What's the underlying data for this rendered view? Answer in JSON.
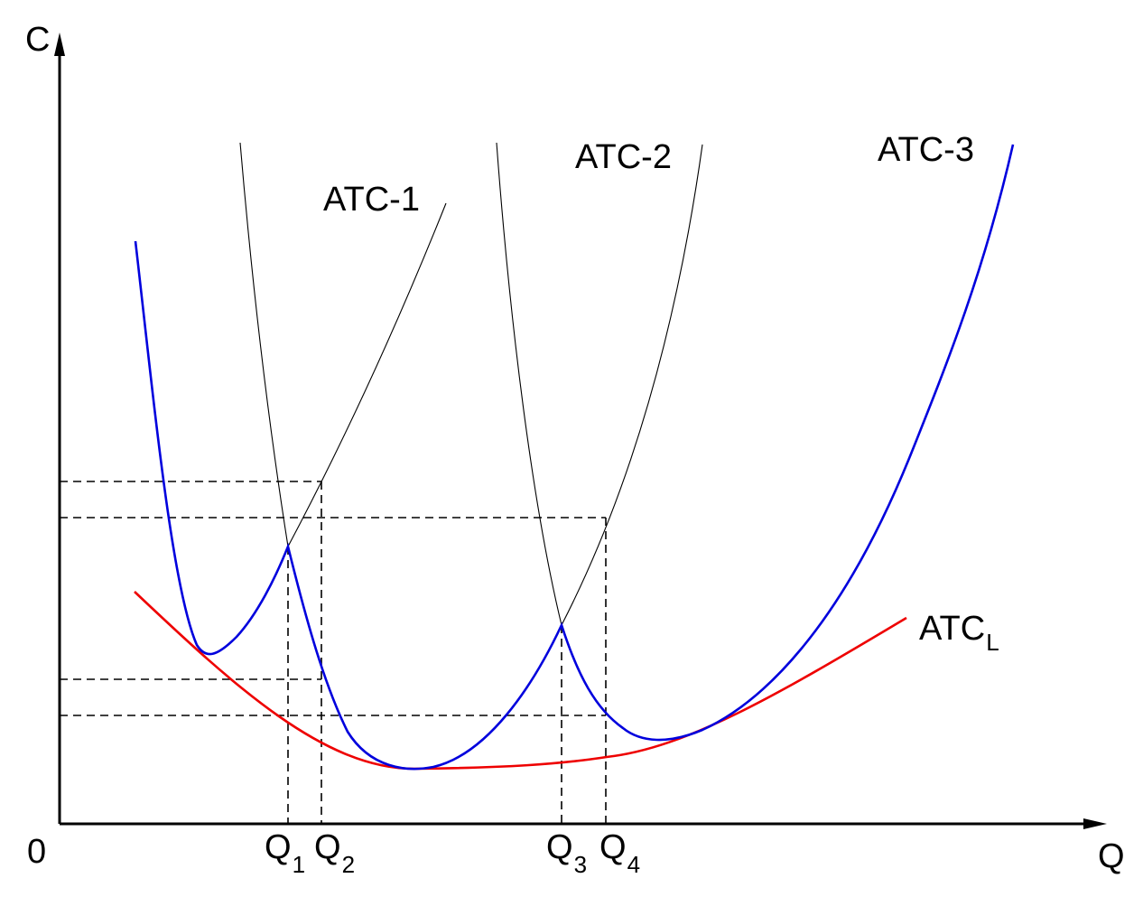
{
  "axes": {
    "y_label": "C",
    "x_label": "Q",
    "origin_label": "0"
  },
  "curves": {
    "atc1": {
      "label": "ATC-1"
    },
    "atc2": {
      "label": "ATC-2"
    },
    "atc3": {
      "label": "ATC-3"
    },
    "atcl": {
      "label_main": "ATC",
      "label_sub": "L"
    }
  },
  "quantities": [
    {
      "main": "Q",
      "sub": "1"
    },
    {
      "main": "Q",
      "sub": "2"
    },
    {
      "main": "Q",
      "sub": "3"
    },
    {
      "main": "Q",
      "sub": "4"
    }
  ],
  "colors": {
    "axis": "#000000",
    "short_run_curves": "#000000",
    "envelope_lower": "#0000dd",
    "long_run_atc": "#ee0000",
    "guide_lines": "#000000"
  }
}
